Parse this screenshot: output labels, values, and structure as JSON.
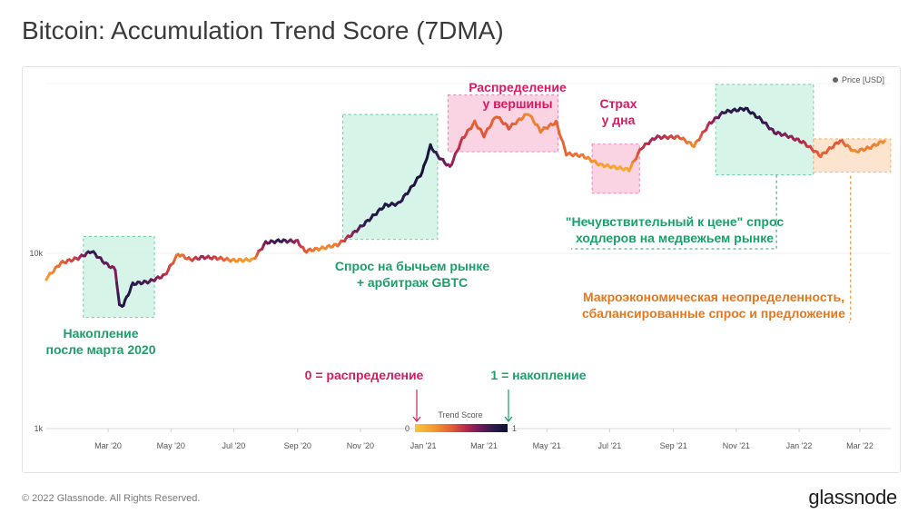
{
  "title": "Bitcoin: Accumulation Trend Score (7DMA)",
  "footer": "© 2022 Glassnode. All Rights Reserved.",
  "brand": "glassnode",
  "colors": {
    "accumulation_box": "#d3f3e6",
    "accumulation_border": "#40b98a",
    "distribution_box": "#fbd0e2",
    "distribution_border": "#e05599",
    "neutral_box": "#fde2c9",
    "neutral_border": "#f29a3f",
    "green_text": "#1aa06b",
    "pink_text": "#d81b60",
    "orange_text": "#e8771c",
    "gradient": [
      "#f9c53d",
      "#f39b2f",
      "#e35a36",
      "#b52a4d",
      "#6e1c5b",
      "#2c1a4d",
      "#0f1033"
    ]
  },
  "chart_data": {
    "type": "line",
    "y_scale": "log",
    "legend": {
      "label": "Price [USD]",
      "placement": "top-right"
    },
    "y_ticks": [
      "10k",
      "1k"
    ],
    "x_ticks": [
      "Mar '20",
      "May '20",
      "Jul '20",
      "Sep '20",
      "Nov '20",
      "Jan '21",
      "Mar '21",
      "May '21",
      "Jul '21",
      "Sep '21",
      "Nov '21",
      "Jan '22",
      "Mar '22"
    ],
    "series": [
      {
        "points": [
          [
            "2020-01-01",
            7200,
            0.15
          ],
          [
            "2020-01-15",
            8800,
            0.3
          ],
          [
            "2020-02-01",
            9400,
            0.45
          ],
          [
            "2020-02-14",
            10300,
            0.85
          ],
          [
            "2020-02-28",
            8700,
            0.7
          ],
          [
            "2020-03-08",
            8100,
            0.6
          ],
          [
            "2020-03-12",
            5000,
            0.85
          ],
          [
            "2020-03-16",
            5100,
            0.9
          ],
          [
            "2020-03-25",
            6700,
            0.85
          ],
          [
            "2020-04-10",
            6900,
            0.75
          ],
          [
            "2020-04-25",
            7500,
            0.5
          ],
          [
            "2020-05-08",
            9900,
            0.25
          ],
          [
            "2020-05-20",
            9200,
            0.35
          ],
          [
            "2020-06-01",
            9500,
            0.55
          ],
          [
            "2020-06-15",
            9400,
            0.4
          ],
          [
            "2020-07-01",
            9100,
            0.2
          ],
          [
            "2020-07-20",
            9200,
            0.15
          ],
          [
            "2020-08-01",
            11500,
            0.65
          ],
          [
            "2020-08-15",
            11800,
            0.85
          ],
          [
            "2020-09-01",
            11700,
            0.55
          ],
          [
            "2020-09-08",
            10300,
            0.35
          ],
          [
            "2020-09-25",
            10700,
            0.2
          ],
          [
            "2020-10-10",
            11200,
            0.25
          ],
          [
            "2020-10-25",
            13000,
            0.6
          ],
          [
            "2020-11-08",
            15300,
            0.85
          ],
          [
            "2020-11-25",
            18800,
            0.9
          ],
          [
            "2020-12-08",
            19200,
            0.85
          ],
          [
            "2020-12-20",
            23500,
            0.9
          ],
          [
            "2020-12-31",
            29000,
            0.95
          ],
          [
            "2021-01-08",
            41000,
            0.95
          ],
          [
            "2021-01-15",
            36000,
            0.8
          ],
          [
            "2021-01-27",
            31000,
            0.6
          ],
          [
            "2021-02-08",
            45000,
            0.45
          ],
          [
            "2021-02-20",
            56000,
            0.3
          ],
          [
            "2021-03-01",
            47000,
            0.35
          ],
          [
            "2021-03-13",
            61000,
            0.3
          ],
          [
            "2021-03-25",
            52000,
            0.35
          ],
          [
            "2021-04-13",
            63000,
            0.2
          ],
          [
            "2021-04-25",
            50000,
            0.25
          ],
          [
            "2021-05-10",
            56000,
            0.3
          ],
          [
            "2021-05-20",
            37000,
            0.3
          ],
          [
            "2021-06-05",
            36000,
            0.25
          ],
          [
            "2021-06-22",
            32000,
            0.15
          ],
          [
            "2021-07-20",
            30000,
            0.1
          ],
          [
            "2021-08-01",
            40000,
            0.45
          ],
          [
            "2021-08-15",
            46000,
            0.55
          ],
          [
            "2021-09-07",
            46000,
            0.35
          ],
          [
            "2021-09-21",
            41000,
            0.2
          ],
          [
            "2021-10-06",
            55000,
            0.5
          ],
          [
            "2021-10-20",
            64000,
            0.8
          ],
          [
            "2021-11-10",
            67000,
            0.9
          ],
          [
            "2021-11-25",
            58000,
            0.85
          ],
          [
            "2021-12-08",
            49000,
            0.7
          ],
          [
            "2021-12-20",
            47000,
            0.6
          ],
          [
            "2022-01-05",
            43000,
            0.5
          ],
          [
            "2022-01-22",
            36000,
            0.3
          ],
          [
            "2022-02-10",
            44000,
            0.35
          ],
          [
            "2022-02-24",
            38000,
            0.2
          ],
          [
            "2022-03-10",
            40000,
            0.25
          ],
          [
            "2022-03-25",
            44000,
            0.2
          ]
        ]
      }
    ],
    "colorbar": {
      "label": "Trend Score",
      "min_label": "0",
      "max_label": "1",
      "range": [
        0,
        1
      ]
    },
    "boxes": [
      {
        "type": "accumulation",
        "x": [
          "2020-02-06",
          "2020-04-15"
        ],
        "y": [
          4300,
          12500
        ]
      },
      {
        "type": "accumulation",
        "x": [
          "2020-10-15",
          "2021-01-15"
        ],
        "y": [
          12000,
          62000
        ]
      },
      {
        "type": "distribution",
        "x": [
          "2021-01-25",
          "2021-05-12"
        ],
        "y": [
          38000,
          80000
        ]
      },
      {
        "type": "distribution",
        "x": [
          "2021-06-14",
          "2021-07-30"
        ],
        "y": [
          22000,
          42000
        ]
      },
      {
        "type": "accumulation",
        "x": [
          "2021-10-12",
          "2022-01-15"
        ],
        "y": [
          28000,
          92000
        ]
      },
      {
        "type": "neutral",
        "x": [
          "2022-01-15",
          "2022-03-31"
        ],
        "y": [
          29000,
          45000
        ]
      }
    ],
    "annotations": [
      {
        "name": "accumulation-after-march",
        "color": "green",
        "lines": [
          "Накопление",
          "после марта 2020"
        ]
      },
      {
        "name": "bull-demand",
        "color": "green",
        "lines": [
          "Спрос на бычьем рынке",
          "+ арбитраж GBTC"
        ]
      },
      {
        "name": "distribution-top",
        "color": "pink",
        "lines": [
          "Распределение",
          "у вершины"
        ]
      },
      {
        "name": "fear-bottom",
        "color": "pink",
        "lines": [
          "Страх",
          "у дна"
        ]
      },
      {
        "name": "holders-demand",
        "color": "green",
        "lines": [
          "\"Нечувствительный к цене\" спрос",
          "ходлеров на медвежьем рынке"
        ]
      },
      {
        "name": "macro-uncertainty",
        "color": "orange",
        "lines": [
          "Макроэкономическая неопределенность,",
          "сбалансированные спрос и предложение"
        ]
      },
      {
        "name": "zero-label",
        "color": "pink",
        "lines": [
          "0 = распределение"
        ]
      },
      {
        "name": "one-label",
        "color": "green",
        "lines": [
          "1 = накопление"
        ]
      }
    ]
  }
}
